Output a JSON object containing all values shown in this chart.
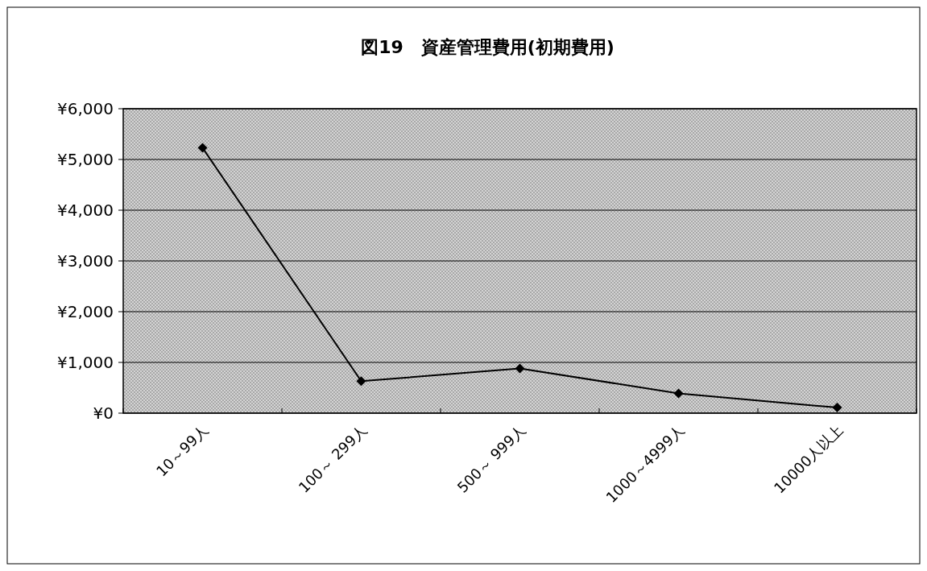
{
  "chart_data": {
    "type": "line",
    "title": "図19　資産管理費用(初期費用)",
    "categories": [
      "10～99人",
      "100～ 299人",
      "500～ 999人",
      "1000～4999人",
      "10000人以上"
    ],
    "series": [
      {
        "color": "#000000",
        "values": [
          5230,
          630,
          880,
          390,
          110
        ]
      }
    ],
    "ylim": [
      0,
      6000
    ],
    "yticks": [
      {
        "value": 0,
        "label": "¥0"
      },
      {
        "value": 1000,
        "label": "¥1,000"
      },
      {
        "value": 2000,
        "label": "¥2,000"
      },
      {
        "value": 3000,
        "label": "¥3,000"
      },
      {
        "value": 4000,
        "label": "¥4,000"
      },
      {
        "value": 5000,
        "label": "¥5,000"
      },
      {
        "value": 6000,
        "label": "¥6,000"
      }
    ],
    "grid": "y",
    "marker": "diamond",
    "line_style": "solid"
  }
}
